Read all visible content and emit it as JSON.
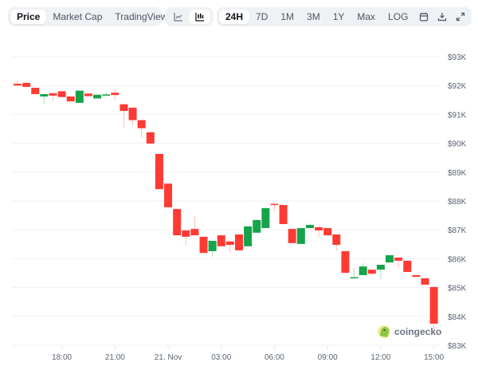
{
  "toolbar": {
    "view_tabs": [
      {
        "label": "Price",
        "active": true
      },
      {
        "label": "Market Cap",
        "active": false
      },
      {
        "label": "TradingView",
        "active": false
      }
    ],
    "chart_type_buttons": [
      {
        "icon": "line-chart-icon",
        "active": false
      },
      {
        "icon": "candlestick-chart-icon",
        "active": true
      }
    ],
    "range_tabs": [
      {
        "label": "24H",
        "active": true
      },
      {
        "label": "7D",
        "active": false
      },
      {
        "label": "1M",
        "active": false
      },
      {
        "label": "3M",
        "active": false
      },
      {
        "label": "1Y",
        "active": false
      },
      {
        "label": "Max",
        "active": false
      },
      {
        "label": "LOG",
        "active": false
      }
    ],
    "action_icons": [
      "calendar-icon",
      "download-icon",
      "expand-icon"
    ]
  },
  "watermark": "coingecko",
  "chart_data": {
    "type": "candlestick",
    "title": "",
    "xlabel": "",
    "ylabel": "",
    "ylim": [
      83000,
      93000
    ],
    "y_ticks": [
      93000,
      92000,
      91000,
      90000,
      89000,
      88000,
      87000,
      86000,
      85000,
      84000,
      83000
    ],
    "y_tick_labels": [
      "$93K",
      "$92K",
      "$91K",
      "$90K",
      "$89K",
      "$88K",
      "$87K",
      "$86K",
      "$85K",
      "$84K",
      "$83K"
    ],
    "x_tick_labels": [
      {
        "label": "18:00",
        "candle": 5
      },
      {
        "label": "21:00",
        "candle": 11
      },
      {
        "label": "21. Nov",
        "candle": 17
      },
      {
        "label": "03:00",
        "candle": 23
      },
      {
        "label": "06:00",
        "candle": 29
      },
      {
        "label": "09:00",
        "candle": 35
      },
      {
        "label": "12:00",
        "candle": 41
      },
      {
        "label": "15:00",
        "candle": 47
      }
    ],
    "grid": true,
    "up_color": "#16a34a",
    "down_color": "#ff3a33",
    "candles_ohlc": [
      [
        92060,
        92160,
        91990,
        92000
      ],
      [
        92090,
        92120,
        91950,
        91950
      ],
      [
        91920,
        91920,
        91700,
        91700
      ],
      [
        91620,
        91720,
        91370,
        91700
      ],
      [
        91730,
        91750,
        91450,
        91650
      ],
      [
        91800,
        91800,
        91600,
        91600
      ],
      [
        91620,
        91620,
        91450,
        91450
      ],
      [
        91400,
        91820,
        91400,
        91820
      ],
      [
        91720,
        91750,
        91630,
        91630
      ],
      [
        91550,
        91680,
        91550,
        91680
      ],
      [
        91670,
        91780,
        91600,
        91690
      ],
      [
        91750,
        91870,
        91500,
        91670
      ],
      [
        91350,
        91350,
        90540,
        91120
      ],
      [
        91230,
        91230,
        90620,
        90800
      ],
      [
        90800,
        90800,
        90200,
        90520
      ],
      [
        90380,
        90380,
        89990,
        89990
      ],
      [
        89630,
        89630,
        88410,
        88410
      ],
      [
        88600,
        88600,
        87780,
        87780
      ],
      [
        87720,
        87720,
        86810,
        86810
      ],
      [
        86980,
        86980,
        86450,
        86760
      ],
      [
        87030,
        87470,
        86810,
        86810
      ],
      [
        86760,
        86760,
        86200,
        86200
      ],
      [
        86260,
        86620,
        86070,
        86620
      ],
      [
        86810,
        86810,
        86430,
        86430
      ],
      [
        86600,
        86600,
        86200,
        86480
      ],
      [
        86840,
        86840,
        86290,
        86290
      ],
      [
        86430,
        87120,
        86430,
        87120
      ],
      [
        86900,
        87380,
        86900,
        87340
      ],
      [
        87060,
        87790,
        87060,
        87750
      ],
      [
        87900,
        87920,
        87620,
        87870
      ],
      [
        87860,
        87860,
        87200,
        87200
      ],
      [
        87030,
        87030,
        86540,
        86540
      ],
      [
        86510,
        87060,
        86510,
        87060
      ],
      [
        87060,
        87230,
        87060,
        87170
      ],
      [
        87090,
        87170,
        86730,
        86980
      ],
      [
        87060,
        87060,
        86810,
        86810
      ],
      [
        86840,
        86840,
        86260,
        86480
      ],
      [
        86260,
        86260,
        85510,
        85510
      ],
      [
        85330,
        85680,
        85330,
        85360
      ],
      [
        85430,
        85850,
        85430,
        85730
      ],
      [
        85620,
        85620,
        85430,
        85480
      ],
      [
        85620,
        85790,
        85290,
        85790
      ],
      [
        85870,
        86120,
        85870,
        86120
      ],
      [
        86040,
        86040,
        85680,
        85930
      ],
      [
        85930,
        85930,
        85540,
        85540
      ],
      [
        85430,
        85430,
        85370,
        85370
      ],
      [
        85320,
        85320,
        85100,
        85100
      ],
      [
        85020,
        85020,
        83360,
        83750
      ]
    ]
  }
}
